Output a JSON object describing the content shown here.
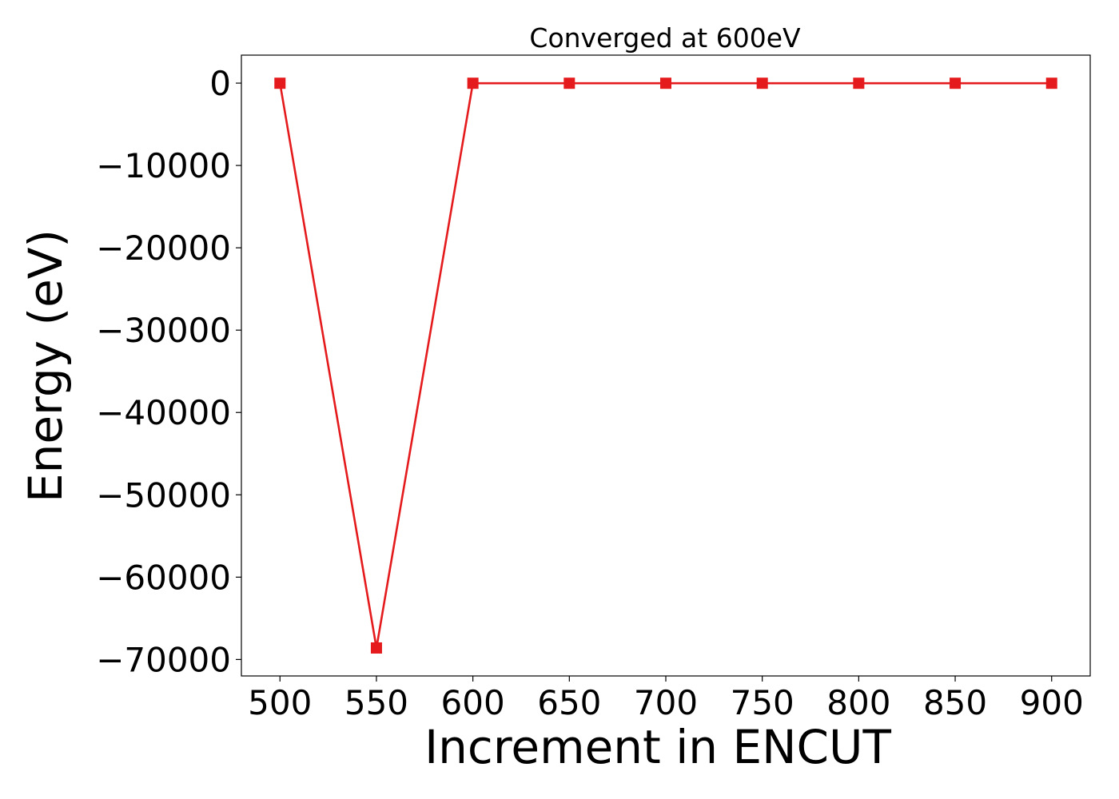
{
  "chart_data": {
    "type": "line",
    "title": "Converged at 600eV",
    "xlabel": "Increment in ENCUT",
    "ylabel": "Energy (eV)",
    "x": [
      500,
      550,
      600,
      650,
      700,
      750,
      800,
      850,
      900
    ],
    "series": [
      {
        "values": [
          -15,
          -68600,
          -15,
          -15,
          -15,
          -15,
          -15,
          -15,
          -15
        ],
        "color": "#e41a1c",
        "marker": "square"
      }
    ],
    "xlim": [
      480,
      920
    ],
    "ylim": [
      -72000,
      3400
    ],
    "xticks": [
      500,
      550,
      600,
      650,
      700,
      750,
      800,
      850,
      900
    ],
    "xtick_labels": [
      "500",
      "550",
      "600",
      "650",
      "700",
      "750",
      "800",
      "850",
      "900"
    ],
    "yticks": [
      0,
      -10000,
      -20000,
      -30000,
      -40000,
      -50000,
      -60000,
      -70000
    ],
    "ytick_labels": [
      "0",
      "−10000",
      "−20000",
      "−30000",
      "−40000",
      "−50000",
      "−60000",
      "−70000"
    ],
    "grid": false,
    "legend": false
  }
}
